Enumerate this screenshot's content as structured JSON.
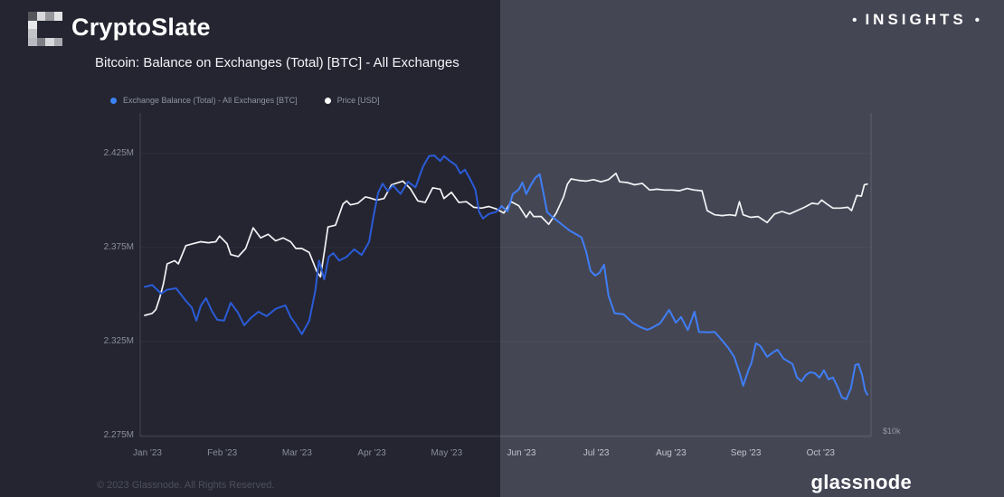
{
  "header": {
    "brand": "CryptoSlate",
    "insights_label": "INSIGHTS",
    "bullet": "•",
    "title": "Bitcoin: Balance on Exchanges (Total) [BTC] - All Exchanges"
  },
  "legend": {
    "items": [
      {
        "label": "Exchange Balance (Total) - All Exchanges [BTC]",
        "color": "#3b82f6"
      },
      {
        "label": "Price [USD]",
        "color": "#ffffff"
      }
    ]
  },
  "footer": {
    "copyright": "© 2023 Glassnode. All Rights Reserved.",
    "brand": "glassnode"
  },
  "colors": {
    "background_dark": "#242531",
    "background_light": "#454654",
    "balance_line_dark": "#2a5bd7",
    "balance_line_light": "#3f7ef5",
    "price_line": "#f2f3f5",
    "axis_text": "#8a8d97",
    "axis_text_light": "#c2c4cc"
  },
  "chart_data": {
    "type": "line",
    "title": "Bitcoin: Balance on Exchanges (Total) [BTC] - All Exchanges",
    "x_unit": "months since Jan 1 2023",
    "x_ticks": [
      {
        "m": 0,
        "label": "Jan '23"
      },
      {
        "m": 1,
        "label": "Feb '23"
      },
      {
        "m": 2,
        "label": "Mar '23"
      },
      {
        "m": 3,
        "label": "Apr '23"
      },
      {
        "m": 4,
        "label": "May '23"
      },
      {
        "m": 5,
        "label": "Jun '23"
      },
      {
        "m": 6,
        "label": "Jul '23"
      },
      {
        "m": 7,
        "label": "Aug '23"
      },
      {
        "m": 8,
        "label": "Sep '23"
      },
      {
        "m": 9,
        "label": "Oct '23"
      }
    ],
    "left_axis": {
      "unit": "M BTC",
      "scale": "linear",
      "ylim": [
        2.2744,
        2.4466
      ],
      "ticks": [
        {
          "v": 2.425,
          "label": "2.425M"
        },
        {
          "v": 2.375,
          "label": "2.375M"
        },
        {
          "v": 2.325,
          "label": "2.325M"
        },
        {
          "v": 2.275,
          "label": "2.275M"
        }
      ]
    },
    "right_axis": {
      "unit": "thousand USD",
      "scale": "log",
      "ylim": [
        9.56,
        41.4
      ],
      "ticks": [
        {
          "v": 9.77,
          "label": "$10k"
        }
      ]
    },
    "grid": "subtle-horizontal",
    "legend_position": "top-left",
    "series": [
      {
        "name": "Exchange Balance (Total) - All Exchanges [BTC]",
        "axis": "left",
        "points": [
          [
            0,
            2.354
          ],
          [
            0.1,
            2.355
          ],
          [
            0.22,
            2.3504
          ],
          [
            0.3,
            2.3525
          ],
          [
            0.42,
            2.3533
          ],
          [
            0.55,
            2.3466
          ],
          [
            0.63,
            2.343
          ],
          [
            0.69,
            2.336
          ],
          [
            0.75,
            2.344
          ],
          [
            0.82,
            2.348
          ],
          [
            0.9,
            2.341
          ],
          [
            0.97,
            2.3365
          ],
          [
            1.06,
            2.336
          ],
          [
            1.15,
            2.3456
          ],
          [
            1.25,
            2.34
          ],
          [
            1.33,
            2.3336
          ],
          [
            1.42,
            2.3375
          ],
          [
            1.52,
            2.3408
          ],
          [
            1.63,
            2.3384
          ],
          [
            1.75,
            2.3423
          ],
          [
            1.88,
            2.3442
          ],
          [
            1.95,
            2.338
          ],
          [
            2.02,
            2.334
          ],
          [
            2.1,
            2.3288
          ],
          [
            2.2,
            2.336
          ],
          [
            2.28,
            2.352
          ],
          [
            2.33,
            2.368
          ],
          [
            2.4,
            2.358
          ],
          [
            2.46,
            2.37
          ],
          [
            2.52,
            2.372
          ],
          [
            2.6,
            2.368
          ],
          [
            2.7,
            2.37
          ],
          [
            2.8,
            2.374
          ],
          [
            2.9,
            2.371
          ],
          [
            3,
            2.378
          ],
          [
            3.06,
            2.392
          ],
          [
            3.12,
            2.404
          ],
          [
            3.18,
            2.409
          ],
          [
            3.25,
            2.405
          ],
          [
            3.32,
            2.408
          ],
          [
            3.42,
            2.4035
          ],
          [
            3.52,
            2.41
          ],
          [
            3.62,
            2.407
          ],
          [
            3.72,
            2.418
          ],
          [
            3.8,
            2.4236
          ],
          [
            3.87,
            2.424
          ],
          [
            3.95,
            2.421
          ],
          [
            4,
            2.4236
          ],
          [
            4.08,
            2.421
          ],
          [
            4.16,
            2.4188
          ],
          [
            4.22,
            2.4144
          ],
          [
            4.28,
            2.4164
          ],
          [
            4.35,
            2.4115
          ],
          [
            4.42,
            2.4058
          ],
          [
            4.47,
            2.394
          ],
          [
            4.52,
            2.3904
          ],
          [
            4.6,
            2.3928
          ],
          [
            4.7,
            2.394
          ],
          [
            4.77,
            2.397
          ],
          [
            4.85,
            2.3942
          ],
          [
            4.92,
            2.4034
          ],
          [
            5,
            2.4058
          ],
          [
            5.05,
            2.4096
          ],
          [
            5.1,
            2.4034
          ],
          [
            5.16,
            2.408
          ],
          [
            5.22,
            2.412
          ],
          [
            5.28,
            2.414
          ],
          [
            5.33,
            2.404
          ],
          [
            5.38,
            2.3938
          ],
          [
            5.45,
            2.3913
          ],
          [
            5.52,
            2.389
          ],
          [
            5.6,
            2.3865
          ],
          [
            5.68,
            2.384
          ],
          [
            5.76,
            2.3822
          ],
          [
            5.84,
            2.3803
          ],
          [
            5.9,
            2.373
          ],
          [
            5.96,
            2.3625
          ],
          [
            6.02,
            2.36
          ],
          [
            6.08,
            2.3615
          ],
          [
            6.14,
            2.3658
          ],
          [
            6.2,
            2.3495
          ],
          [
            6.28,
            2.34
          ],
          [
            6.4,
            2.3395
          ],
          [
            6.52,
            2.335
          ],
          [
            6.62,
            2.3327
          ],
          [
            6.72,
            2.3312
          ],
          [
            6.77,
            2.332
          ],
          [
            6.89,
            2.3346
          ],
          [
            7.01,
            2.3418
          ],
          [
            7.1,
            2.335
          ],
          [
            7.17,
            2.338
          ],
          [
            7.26,
            2.331
          ],
          [
            7.35,
            2.3408
          ],
          [
            7.41,
            2.33
          ],
          [
            7.53,
            2.3298
          ],
          [
            7.62,
            2.33
          ],
          [
            7.7,
            2.3264
          ],
          [
            7.8,
            2.3216
          ],
          [
            7.88,
            2.3168
          ],
          [
            7.96,
            2.3072
          ],
          [
            8,
            2.3014
          ],
          [
            8.07,
            2.3096
          ],
          [
            8.11,
            2.3134
          ],
          [
            8.17,
            2.324
          ],
          [
            8.23,
            2.3226
          ],
          [
            8.32,
            2.3168
          ],
          [
            8.4,
            2.3192
          ],
          [
            8.46,
            2.3206
          ],
          [
            8.54,
            2.3158
          ],
          [
            8.6,
            2.3144
          ],
          [
            8.66,
            2.313
          ],
          [
            8.72,
            2.3058
          ],
          [
            8.78,
            2.3038
          ],
          [
            8.84,
            2.3072
          ],
          [
            8.9,
            2.3086
          ],
          [
            8.96,
            2.308
          ],
          [
            9.02,
            2.3057
          ],
          [
            9.08,
            2.3096
          ],
          [
            9.14,
            2.3048
          ],
          [
            9.2,
            2.3058
          ],
          [
            9.26,
            2.301
          ],
          [
            9.32,
            2.2952
          ],
          [
            9.38,
            2.2942
          ],
          [
            9.44,
            2.3
          ],
          [
            9.5,
            2.3124
          ],
          [
            9.54,
            2.313
          ],
          [
            9.59,
            2.3072
          ],
          [
            9.63,
            2.299
          ],
          [
            9.66,
            2.2966
          ]
        ]
      },
      {
        "name": "Price [USD]",
        "axis": "right",
        "points": [
          [
            0,
            16.55
          ],
          [
            0.1,
            16.7
          ],
          [
            0.15,
            17
          ],
          [
            0.2,
            17.9
          ],
          [
            0.25,
            19.1
          ],
          [
            0.3,
            20.9
          ],
          [
            0.4,
            21.2
          ],
          [
            0.45,
            20.9
          ],
          [
            0.55,
            22.7
          ],
          [
            0.65,
            22.9
          ],
          [
            0.75,
            23.1
          ],
          [
            0.85,
            23
          ],
          [
            0.95,
            23.1
          ],
          [
            1,
            23.7
          ],
          [
            1.1,
            22.9
          ],
          [
            1.15,
            21.8
          ],
          [
            1.25,
            21.6
          ],
          [
            1.35,
            22.4
          ],
          [
            1.45,
            24.6
          ],
          [
            1.55,
            23.5
          ],
          [
            1.65,
            23.9
          ],
          [
            1.75,
            23.2
          ],
          [
            1.85,
            23.5
          ],
          [
            1.95,
            23.1
          ],
          [
            2.02,
            22.4
          ],
          [
            2.1,
            22.4
          ],
          [
            2.2,
            22
          ],
          [
            2.3,
            20.2
          ],
          [
            2.35,
            19.7
          ],
          [
            2.4,
            22
          ],
          [
            2.45,
            24.7
          ],
          [
            2.55,
            24.9
          ],
          [
            2.65,
            27.4
          ],
          [
            2.7,
            27.8
          ],
          [
            2.75,
            27.3
          ],
          [
            2.85,
            27.5
          ],
          [
            2.95,
            28.3
          ],
          [
            3,
            28.2
          ],
          [
            3.1,
            27.9
          ],
          [
            3.2,
            28.1
          ],
          [
            3.3,
            29.9
          ],
          [
            3.45,
            30.4
          ],
          [
            3.55,
            29.4
          ],
          [
            3.65,
            27.8
          ],
          [
            3.75,
            27.6
          ],
          [
            3.85,
            29.5
          ],
          [
            3.95,
            29.3
          ],
          [
            4,
            28.1
          ],
          [
            4.1,
            28.9
          ],
          [
            4.2,
            27.6
          ],
          [
            4.3,
            27.7
          ],
          [
            4.4,
            27
          ],
          [
            4.5,
            26.9
          ],
          [
            4.6,
            27.1
          ],
          [
            4.7,
            26.8
          ],
          [
            4.8,
            26.3
          ],
          [
            4.9,
            27.7
          ],
          [
            5,
            27.2
          ],
          [
            5.1,
            25.8
          ],
          [
            5.15,
            26.5
          ],
          [
            5.2,
            25.9
          ],
          [
            5.3,
            25.9
          ],
          [
            5.4,
            25
          ],
          [
            5.5,
            26.3
          ],
          [
            5.6,
            28.3
          ],
          [
            5.65,
            30
          ],
          [
            5.7,
            30.7
          ],
          [
            5.8,
            30.5
          ],
          [
            5.9,
            30.4
          ],
          [
            6,
            30.6
          ],
          [
            6.1,
            30.3
          ],
          [
            6.2,
            30.6
          ],
          [
            6.3,
            31.5
          ],
          [
            6.35,
            30.3
          ],
          [
            6.45,
            30.2
          ],
          [
            6.55,
            29.9
          ],
          [
            6.65,
            30.1
          ],
          [
            6.75,
            29.2
          ],
          [
            6.85,
            29.3
          ],
          [
            6.95,
            29.2
          ],
          [
            7.05,
            29.2
          ],
          [
            7.15,
            29.1
          ],
          [
            7.25,
            29.4
          ],
          [
            7.35,
            29.2
          ],
          [
            7.45,
            29.1
          ],
          [
            7.52,
            26.6
          ],
          [
            7.62,
            26.1
          ],
          [
            7.72,
            26
          ],
          [
            7.82,
            26.1
          ],
          [
            7.9,
            26
          ],
          [
            7.95,
            27.7
          ],
          [
            8,
            26.1
          ],
          [
            8.1,
            25.8
          ],
          [
            8.2,
            25.9
          ],
          [
            8.32,
            25.2
          ],
          [
            8.42,
            26.2
          ],
          [
            8.52,
            26.5
          ],
          [
            8.62,
            26.2
          ],
          [
            8.72,
            26.6
          ],
          [
            8.82,
            27
          ],
          [
            8.92,
            27.5
          ],
          [
            9,
            27.4
          ],
          [
            9.05,
            27.9
          ],
          [
            9.12,
            27.4
          ],
          [
            9.2,
            26.9
          ],
          [
            9.3,
            26.9
          ],
          [
            9.4,
            27
          ],
          [
            9.45,
            26.6
          ],
          [
            9.52,
            28.5
          ],
          [
            9.58,
            28.4
          ],
          [
            9.62,
            29.9
          ],
          [
            9.66,
            30
          ]
        ]
      }
    ]
  }
}
